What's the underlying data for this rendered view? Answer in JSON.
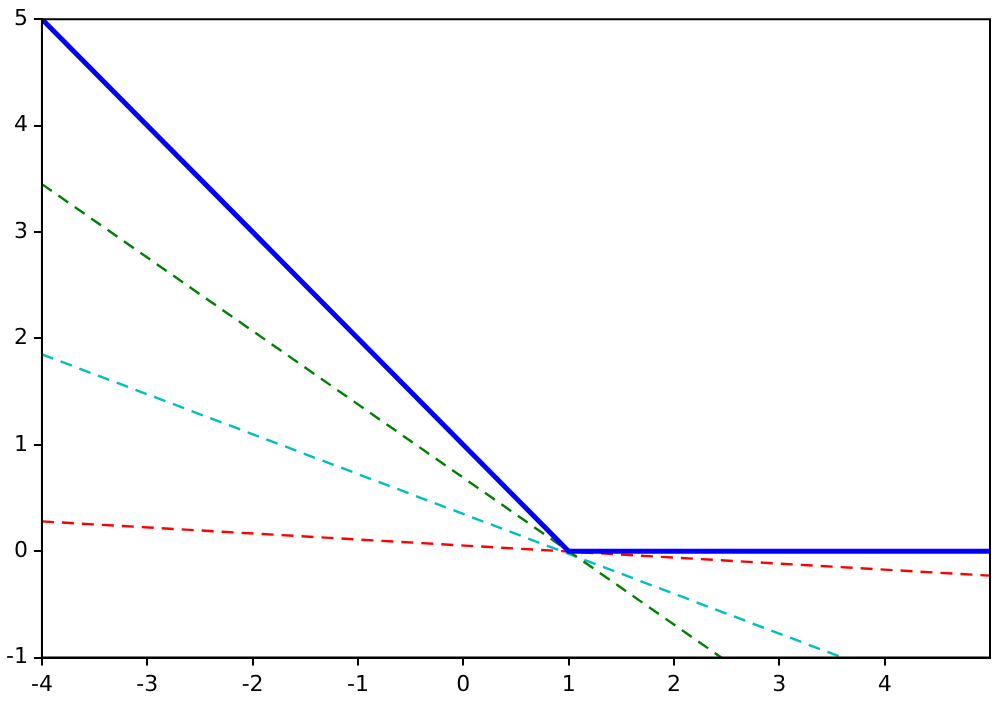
{
  "chart_data": {
    "type": "line",
    "xlim": [
      -4,
      5
    ],
    "ylim": [
      -1,
      5
    ],
    "xticks": [
      -4,
      -3,
      -2,
      -1,
      0,
      1,
      2,
      3,
      4
    ],
    "yticks": [
      -1,
      0,
      1,
      2,
      3,
      4,
      5
    ],
    "grid": false,
    "legend": false,
    "marker": "none",
    "series": [
      {
        "color": "#0000ff",
        "x": [
          -4,
          1,
          5
        ],
        "values": [
          5,
          0,
          0
        ],
        "line_style": "solid"
      },
      {
        "color": "#008000",
        "x": [
          -4,
          2.45
        ],
        "values": [
          3.45,
          -1
        ],
        "line_style": "dashed"
      },
      {
        "color": "#00bfbf",
        "x": [
          -4,
          3.6
        ],
        "values": [
          1.85,
          -1
        ],
        "line_style": "dashed"
      },
      {
        "color": "#ff0000",
        "x": [
          -4,
          5
        ],
        "values": [
          0.28,
          -0.23
        ],
        "line_style": "dashed"
      }
    ]
  }
}
